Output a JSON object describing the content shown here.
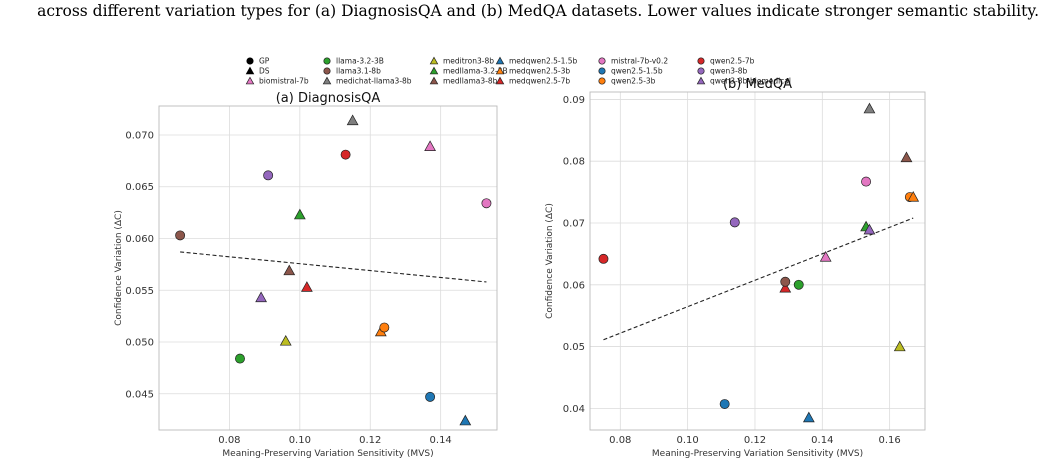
{
  "caption": "across different variation types for (a) DiagnosisQA and (b) MedQA datasets. Lower values indicate stronger semantic stability.",
  "legend": [
    {
      "label": "GP",
      "marker": "circle",
      "color": "#000000"
    },
    {
      "label": "DS",
      "marker": "triangle",
      "color": "#000000"
    },
    {
      "label": "biomistral-7b",
      "marker": "triangle",
      "color": "#e377c2"
    },
    {
      "label": "llama-3.2-3B",
      "marker": "circle",
      "color": "#2ca02c"
    },
    {
      "label": "llama3.1-8b",
      "marker": "circle",
      "color": "#8c564b"
    },
    {
      "label": "medichat-llama3-8b",
      "marker": "triangle",
      "color": "#7f7f7f"
    },
    {
      "label": "meditron3-8b",
      "marker": "triangle",
      "color": "#bcbd22"
    },
    {
      "label": "medllama-3.2-3B",
      "marker": "triangle",
      "color": "#2ca02c"
    },
    {
      "label": "medllama3-8b",
      "marker": "triangle",
      "color": "#8c564b"
    },
    {
      "label": "medqwen2.5-1.5b",
      "marker": "triangle",
      "color": "#1f77b4"
    },
    {
      "label": "medqwen2.5-3b",
      "marker": "triangle",
      "color": "#ff7f0e"
    },
    {
      "label": "medqwen2.5-7b",
      "marker": "triangle",
      "color": "#d62728"
    },
    {
      "label": "mistral-7b-v0.2",
      "marker": "circle",
      "color": "#e377c2"
    },
    {
      "label": "qwen2.5-1.5b",
      "marker": "circle",
      "color": "#1f77b4"
    },
    {
      "label": "qwen2.5-3b",
      "marker": "circle",
      "color": "#ff7f0e"
    },
    {
      "label": "qwen2.5-7b",
      "marker": "circle",
      "color": "#d62728"
    },
    {
      "label": "qwen3-8b",
      "marker": "circle",
      "color": "#9467bd"
    },
    {
      "label": "qwen3-8b-biomedical",
      "marker": "triangle",
      "color": "#9467bd"
    }
  ],
  "chart_data": [
    {
      "type": "scatter",
      "title": "(a) DiagnosisQA",
      "xlabel": "Meaning-Preserving Variation Sensitivity (MVS)",
      "ylabel": "Confidence Variation (ΔC)",
      "xlim": [
        0.06,
        0.156
      ],
      "ylim": [
        0.0415,
        0.0728
      ],
      "xticks": [
        0.08,
        0.1,
        0.12,
        0.14
      ],
      "xtick_labels": [
        "0.08",
        "0.10",
        "0.12",
        "0.14"
      ],
      "yticks": [
        0.045,
        0.05,
        0.055,
        0.06,
        0.065,
        0.07
      ],
      "ytick_labels": [
        "0.045",
        "0.050",
        "0.055",
        "0.060",
        "0.065",
        "0.070"
      ],
      "grid": true,
      "trendline": {
        "x": [
          0.066,
          0.153
        ],
        "y": [
          0.0587,
          0.0558
        ],
        "style": "dashed"
      },
      "points": [
        {
          "model": "llama3.1-8b",
          "x": 0.066,
          "y": 0.0603
        },
        {
          "model": "llama-3.2-3B",
          "x": 0.083,
          "y": 0.0484
        },
        {
          "model": "qwen3-8b-biomedical",
          "x": 0.089,
          "y": 0.0543
        },
        {
          "model": "qwen3-8b",
          "x": 0.091,
          "y": 0.0661
        },
        {
          "model": "meditron3-8b",
          "x": 0.096,
          "y": 0.0501
        },
        {
          "model": "medllama3-8b",
          "x": 0.097,
          "y": 0.0569
        },
        {
          "model": "medllama-3.2-3B",
          "x": 0.1,
          "y": 0.0623
        },
        {
          "model": "medqwen2.5-7b",
          "x": 0.102,
          "y": 0.0553
        },
        {
          "model": "qwen2.5-7b",
          "x": 0.113,
          "y": 0.0681
        },
        {
          "model": "medichat-llama3-8b",
          "x": 0.115,
          "y": 0.0714
        },
        {
          "model": "medqwen2.5-3b",
          "x": 0.123,
          "y": 0.051
        },
        {
          "model": "qwen2.5-3b",
          "x": 0.124,
          "y": 0.0514
        },
        {
          "model": "qwen2.5-1.5b",
          "x": 0.137,
          "y": 0.0447
        },
        {
          "model": "biomistral-7b",
          "x": 0.137,
          "y": 0.0689
        },
        {
          "model": "medqwen2.5-1.5b",
          "x": 0.147,
          "y": 0.0424
        },
        {
          "model": "mistral-7b-v0.2",
          "x": 0.153,
          "y": 0.0634
        }
      ]
    },
    {
      "type": "scatter",
      "title": "(b) MedQA",
      "xlabel": "Meaning-Preserving Variation Sensitivity (MVS)",
      "ylabel": "Confidence Variation (ΔC)",
      "xlim": [
        0.071,
        0.1705
      ],
      "ylim": [
        0.0365,
        0.0912
      ],
      "xticks": [
        0.08,
        0.1,
        0.12,
        0.14,
        0.16
      ],
      "xtick_labels": [
        "0.08",
        "0.10",
        "0.12",
        "0.14",
        "0.16"
      ],
      "yticks": [
        0.04,
        0.05,
        0.06,
        0.07,
        0.08,
        0.09
      ],
      "ytick_labels": [
        "0.04",
        "0.05",
        "0.06",
        "0.07",
        "0.08",
        "0.09"
      ],
      "grid": true,
      "trendline": {
        "x": [
          0.075,
          0.167
        ],
        "y": [
          0.0511,
          0.0708
        ],
        "style": "dashed"
      },
      "points": [
        {
          "model": "qwen2.5-7b",
          "x": 0.075,
          "y": 0.0642
        },
        {
          "model": "qwen2.5-1.5b",
          "x": 0.111,
          "y": 0.0407
        },
        {
          "model": "qwen3-8b",
          "x": 0.114,
          "y": 0.0701
        },
        {
          "model": "medqwen2.5-7b",
          "x": 0.129,
          "y": 0.0595
        },
        {
          "model": "llama3.1-8b",
          "x": 0.129,
          "y": 0.0605
        },
        {
          "model": "llama-3.2-3B",
          "x": 0.133,
          "y": 0.06
        },
        {
          "model": "medqwen2.5-1.5b",
          "x": 0.136,
          "y": 0.0385
        },
        {
          "model": "biomistral-7b",
          "x": 0.141,
          "y": 0.0645
        },
        {
          "model": "mistral-7b-v0.2",
          "x": 0.153,
          "y": 0.0767
        },
        {
          "model": "medllama-3.2-3B",
          "x": 0.153,
          "y": 0.0694
        },
        {
          "model": "qwen3-8b-biomedical",
          "x": 0.154,
          "y": 0.0689
        },
        {
          "model": "medichat-llama3-8b",
          "x": 0.154,
          "y": 0.0885
        },
        {
          "model": "meditron3-8b",
          "x": 0.163,
          "y": 0.05
        },
        {
          "model": "medllama3-8b",
          "x": 0.165,
          "y": 0.0806
        },
        {
          "model": "qwen2.5-3b",
          "x": 0.166,
          "y": 0.0742
        },
        {
          "model": "medqwen2.5-3b",
          "x": 0.167,
          "y": 0.0742
        }
      ]
    }
  ]
}
